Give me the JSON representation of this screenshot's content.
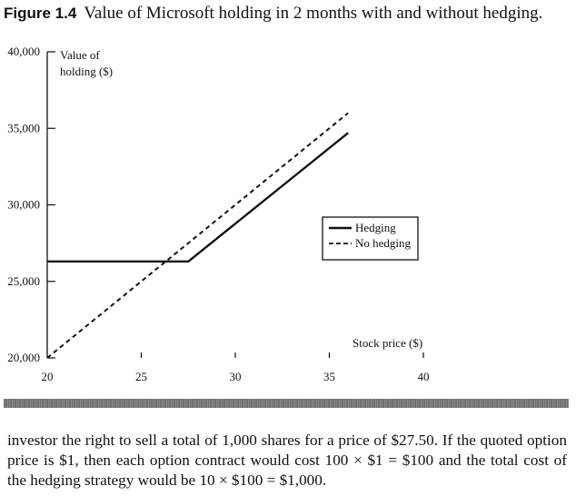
{
  "figure": {
    "number": "Figure 1.4",
    "title": "Value of Microsoft holding in 2 months with and without hedging."
  },
  "chart_data": {
    "type": "line",
    "ylabel": "Value of holding ($)",
    "xlabel": "Stock price ($)",
    "xlim": [
      20,
      40
    ],
    "ylim": [
      20000,
      40000
    ],
    "x_ticks": [
      20,
      25,
      30,
      35,
      40
    ],
    "y_ticks": [
      20000,
      25000,
      30000,
      35000,
      40000
    ],
    "x_tick_labels": [
      "20",
      "25",
      "30",
      "35",
      "40"
    ],
    "y_tick_labels": [
      "20,000",
      "25,000",
      "30,000",
      "35,000",
      "40,000"
    ],
    "legend_position": "right",
    "series": [
      {
        "name": "Hedging",
        "style": "solid",
        "points": [
          [
            20,
            26300
          ],
          [
            27.5,
            26300
          ],
          [
            36,
            34700
          ]
        ]
      },
      {
        "name": "No hedging",
        "style": "dashed",
        "points": [
          [
            20,
            20000
          ],
          [
            36,
            36000
          ]
        ]
      }
    ]
  },
  "text": {
    "paragraph": "investor the right to sell a total of 1,000 shares for a price of $27.50. If the quoted option price is $1, then each option contract would cost 100 × $1 = $100 and the total cost of the hedging strategy would be 10 × $100 = $1,000."
  }
}
